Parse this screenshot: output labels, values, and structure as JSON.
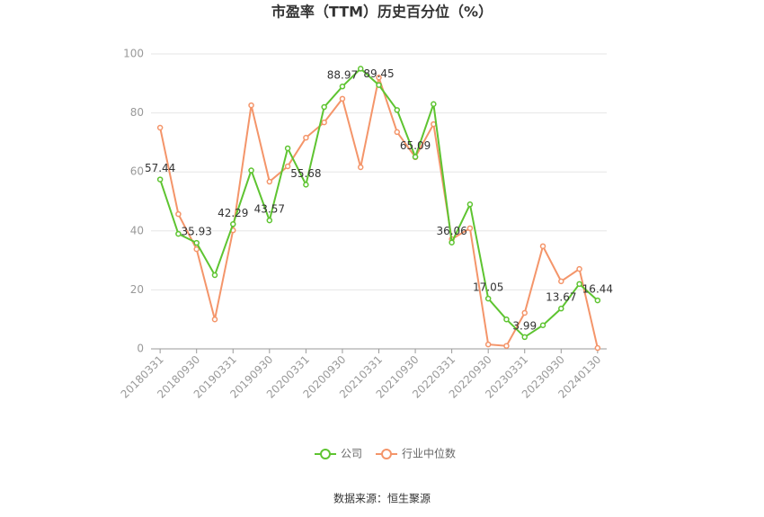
{
  "chart_data": {
    "type": "line",
    "title": "市盈率（TTM）历史百分位（%）",
    "categories": [
      "20180331",
      null,
      "20180930",
      null,
      "20190331",
      null,
      "20190930",
      null,
      "20200331",
      null,
      "20200930",
      null,
      "20210331",
      null,
      "20210930",
      null,
      "20220331",
      null,
      "20220930",
      null,
      "20230331",
      null,
      "20230930",
      null,
      "20240130"
    ],
    "series": [
      {
        "name": "公司",
        "color": "#5ec431",
        "values": [
          57.44,
          39,
          35.93,
          25,
          42.29,
          60.5,
          43.57,
          68,
          55.68,
          82,
          88.97,
          95,
          89.45,
          81,
          65.09,
          83,
          36.06,
          49,
          17.05,
          10,
          3.99,
          8,
          13.67,
          22,
          16.44
        ],
        "value_labels": [
          "57.44",
          null,
          "35.93",
          null,
          "42.29",
          null,
          "43.57",
          null,
          "55.68",
          null,
          "88.97",
          null,
          "89.45",
          null,
          "65.09",
          null,
          "36.06",
          null,
          "17.05",
          null,
          "3.99",
          null,
          "13.67",
          null,
          "16.44"
        ]
      },
      {
        "name": "行业中位数",
        "color": "#f4956a",
        "values": [
          75,
          45.7,
          33.8,
          10,
          40.2,
          82.6,
          56.7,
          61.9,
          71.6,
          76.8,
          84.8,
          61.6,
          92,
          73.5,
          65,
          76.2,
          37.2,
          40.9,
          1.5,
          1,
          12.2,
          34.8,
          22.9,
          27.1,
          0.3
        ]
      }
    ],
    "ylim": [
      0,
      100
    ],
    "yticks": [
      0,
      20,
      40,
      60,
      80,
      100
    ],
    "grid": true,
    "legend": "bottom",
    "source": "数据来源：恒生聚源"
  }
}
